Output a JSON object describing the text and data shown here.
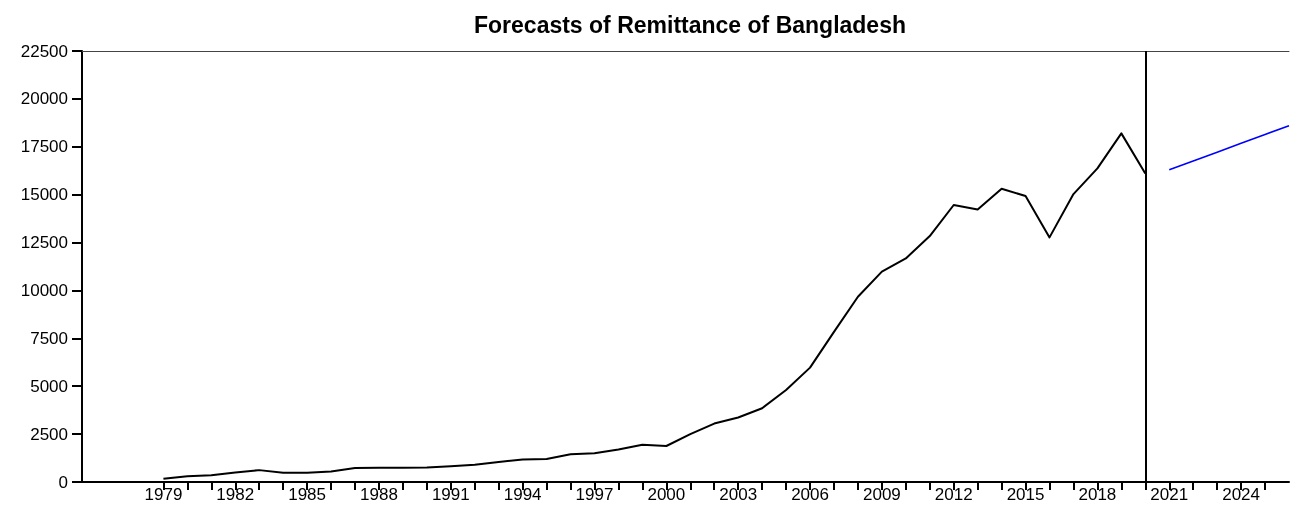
{
  "chart_data": {
    "type": "line",
    "title": "Forecasts of Remittance of Bangladesh",
    "xlim": [
      1975.6,
      2026
    ],
    "xticks": [
      1979,
      {
        "value": 1980,
        "label": null
      },
      {
        "value": 1981,
        "label": null
      },
      1982,
      {
        "value": 1983,
        "label": null
      },
      {
        "value": 1984,
        "label": null
      },
      1985,
      {
        "value": 1986,
        "label": null
      },
      {
        "value": 1987,
        "label": null
      },
      1988,
      {
        "value": 1989,
        "label": null
      },
      {
        "value": 1990,
        "label": null
      },
      1991,
      {
        "value": 1992,
        "label": null
      },
      {
        "value": 1993,
        "label": null
      },
      1994,
      {
        "value": 1995,
        "label": null
      },
      {
        "value": 1996,
        "label": null
      },
      1997,
      {
        "value": 1998,
        "label": null
      },
      {
        "value": 1999,
        "label": null
      },
      2000,
      {
        "value": 2001,
        "label": null
      },
      {
        "value": 2002,
        "label": null
      },
      2003,
      {
        "value": 2004,
        "label": null
      },
      {
        "value": 2005,
        "label": null
      },
      2006,
      {
        "value": 2007,
        "label": null
      },
      {
        "value": 2008,
        "label": null
      },
      2009,
      {
        "value": 2010,
        "label": null
      },
      {
        "value": 2011,
        "label": null
      },
      2012,
      {
        "value": 2013,
        "label": null
      },
      {
        "value": 2014,
        "label": null
      },
      2015,
      {
        "value": 2016,
        "label": null
      },
      {
        "value": 2017,
        "label": null
      },
      2018,
      {
        "value": 2019,
        "label": null
      },
      {
        "value": 2020,
        "label": null
      },
      2021,
      {
        "value": 2022,
        "label": null
      },
      {
        "value": 2023,
        "label": null
      },
      2024,
      {
        "value": 2025,
        "label": null
      }
    ],
    "ylim": [
      0,
      22500
    ],
    "yticks": [
      0,
      2500,
      5000,
      7500,
      10000,
      12500,
      15000,
      17500,
      20000,
      22500
    ],
    "grid": false,
    "marker": "none",
    "line_style": "solid",
    "series": [
      {
        "color": "#000000",
        "x": [
          1979,
          1980,
          1981,
          1982,
          1983,
          1984,
          1985,
          1986,
          1987,
          1988,
          1989,
          1990,
          1991,
          1992,
          1993,
          1994,
          1995,
          1996,
          1997,
          1998,
          1999,
          2000,
          2001,
          2002,
          2003,
          2004,
          2005,
          2006,
          2007,
          2008,
          2009,
          2010,
          2011,
          2012,
          2013,
          2014,
          2015,
          2016,
          2017,
          2018,
          2019,
          2020
        ],
        "values": [
          170,
          300,
          350,
          500,
          620,
          480,
          480,
          550,
          730,
          750,
          740,
          760,
          820,
          900,
          1050,
          1180,
          1200,
          1450,
          1500,
          1700,
          1950,
          1880,
          2500,
          3050,
          3370,
          3850,
          4800,
          5970,
          7840,
          9670,
          10980,
          11670,
          12840,
          14460,
          14230,
          15310,
          14930,
          12770,
          15030,
          16370,
          18200,
          16110
        ]
      },
      {
        "color": "#0000ff",
        "x": [
          2021,
          2022,
          2023,
          2024,
          2025,
          2026
        ],
        "values": [
          16300,
          16760,
          17220,
          17680,
          18140,
          18600
        ]
      }
    ],
    "ref_lines": [
      {
        "axis": "x",
        "value": 2020,
        "color": "#000000",
        "line_style": "solid"
      }
    ]
  }
}
